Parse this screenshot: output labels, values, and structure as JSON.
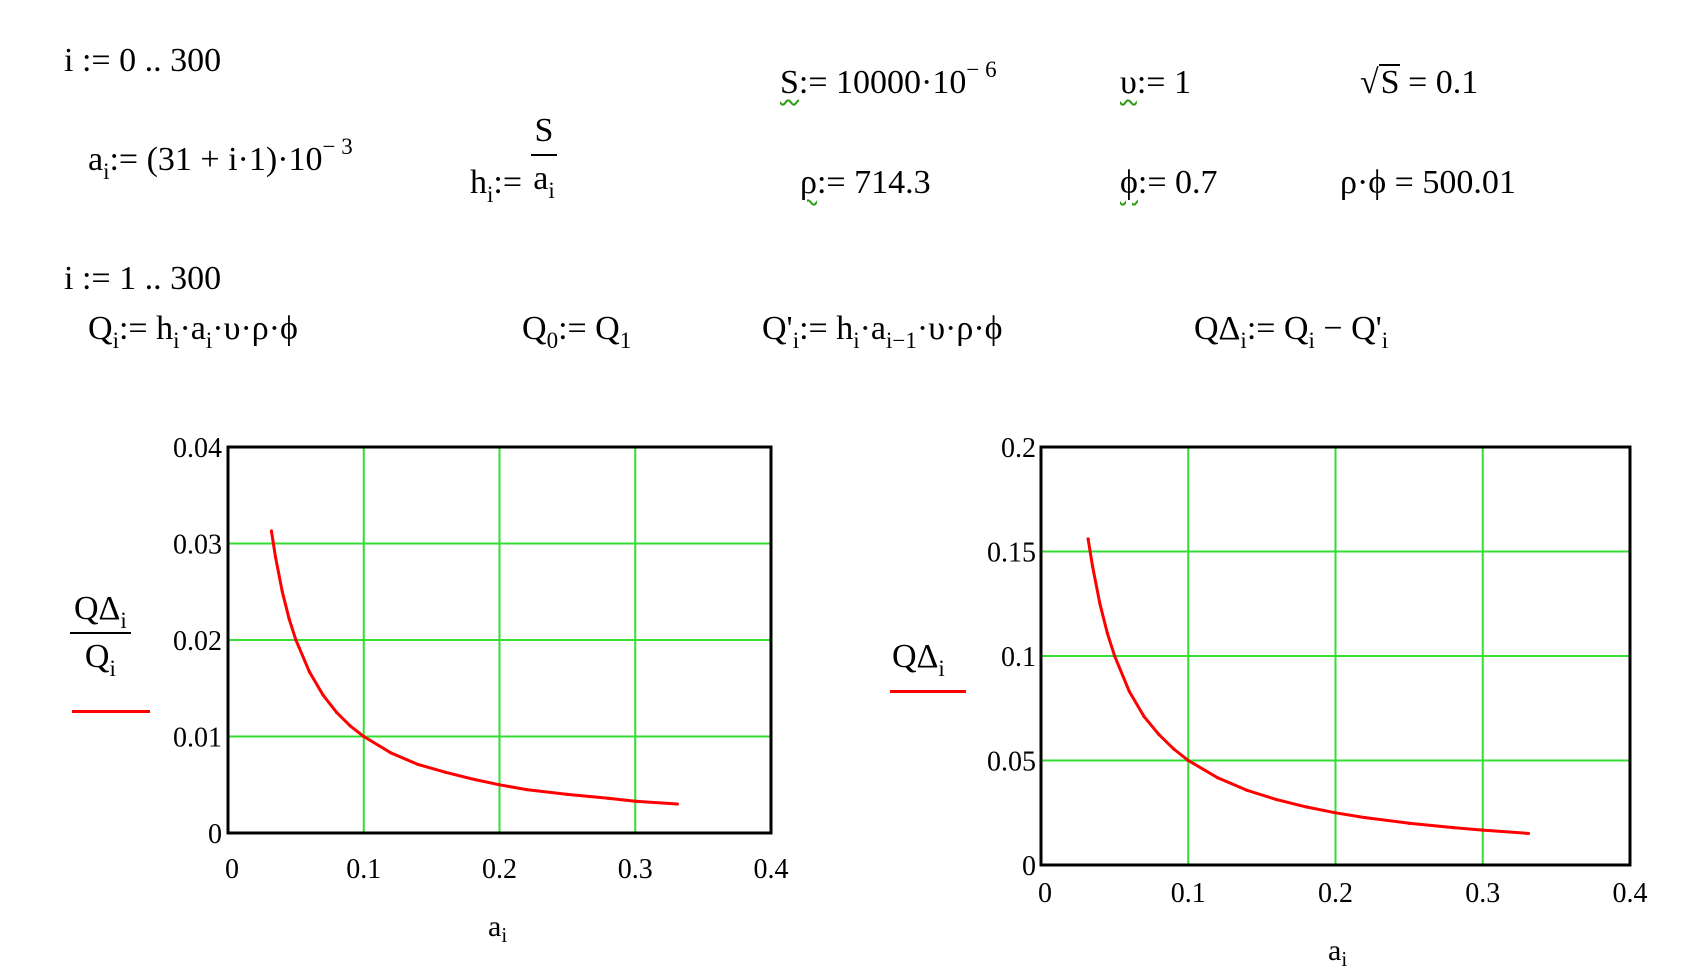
{
  "equations": {
    "range1": "i := 0 .. 300",
    "a_def": "a",
    "a_sub": "i",
    "a_rhs": ":= (31 + i·1)·10",
    "a_exp": "− 3",
    "h_lhs": "h",
    "h_sub": "i",
    "h_assign": ":=",
    "h_num": "S",
    "h_den": "a",
    "h_den_sub": "i",
    "S_lhs": "S",
    "S_rhs": ":= 10000·10",
    "S_exp": "− 6",
    "v_lhs": "υ",
    "v_rhs": ":= 1",
    "sqrt_sym": "√",
    "sqrt_arg": "S",
    "sqrt_rhs": " = 0.1",
    "rho_lhs": "ρ",
    "rho_rhs": ":= 714.3",
    "phi_lhs": "ϕ",
    "phi_rhs": ":= 0.7",
    "rhophi": "ρ·ϕ = 500.01",
    "range2": "i := 1 .. 300",
    "Q_lhs": "Q",
    "Q_sub": "i",
    "Q_rhs1": ":= h",
    "Q_rhs1_sub": "i",
    "Q_rhs2": "·a",
    "Q_rhs2_sub": "i",
    "Q_rhs3": "·υ·ρ·ϕ",
    "Q0_lhs": "Q",
    "Q0_sub": "0",
    "Q0_rhs": ":= Q",
    "Q0_rhs_sub": "1",
    "Qp_lhs": "Q'",
    "Qp_sub": "i",
    "Qp_rhs1": ":= h",
    "Qp_rhs1_sub": "i",
    "Qp_rhs2": "·a",
    "Qp_rhs2_sub": "i−1",
    "Qp_rhs3": "·υ·ρ·ϕ",
    "Qd_lhs": "QΔ",
    "Qd_sub": "i",
    "Qd_rhs1": ":= Q",
    "Qd_rhs1_sub": "i",
    "Qd_rhs2": " − Q'",
    "Qd_rhs2_sub": "i"
  },
  "chart_data": [
    {
      "type": "line",
      "xlabel": "a",
      "xlabel_sub": "i",
      "ylabel_num": "QΔ",
      "ylabel_num_sub": "i",
      "ylabel_den": "Q",
      "ylabel_den_sub": "i",
      "xlim": [
        0,
        0.4
      ],
      "ylim": [
        0,
        0.04
      ],
      "xticks": [
        "0",
        "0.1",
        "0.2",
        "0.3",
        "0.4"
      ],
      "yticks": [
        "0",
        "0.01",
        "0.02",
        "0.03",
        "0.04"
      ],
      "grid": true,
      "series_color": "#ff0000",
      "grid_color": "#33dd33",
      "x": [
        0.032,
        0.035,
        0.04,
        0.045,
        0.05,
        0.06,
        0.07,
        0.08,
        0.09,
        0.1,
        0.12,
        0.14,
        0.16,
        0.18,
        0.2,
        0.22,
        0.25,
        0.28,
        0.3,
        0.331
      ],
      "y": [
        0.0313,
        0.0286,
        0.025,
        0.0222,
        0.02,
        0.0167,
        0.0143,
        0.0125,
        0.0111,
        0.01,
        0.0083,
        0.0071,
        0.0063,
        0.0056,
        0.005,
        0.0045,
        0.004,
        0.0036,
        0.0033,
        0.003
      ]
    },
    {
      "type": "line",
      "xlabel": "a",
      "xlabel_sub": "i",
      "ylabel": "QΔ",
      "ylabel_sub": "i",
      "xlim": [
        0,
        0.4
      ],
      "ylim": [
        0,
        0.2
      ],
      "xticks": [
        "0",
        "0.1",
        "0.2",
        "0.3",
        "0.4"
      ],
      "yticks": [
        "0",
        "0.05",
        "0.1",
        "0.15",
        "0.2"
      ],
      "grid": true,
      "series_color": "#ff0000",
      "grid_color": "#33dd33",
      "x": [
        0.032,
        0.035,
        0.04,
        0.045,
        0.05,
        0.06,
        0.07,
        0.08,
        0.09,
        0.1,
        0.12,
        0.14,
        0.16,
        0.18,
        0.2,
        0.22,
        0.25,
        0.28,
        0.3,
        0.331
      ],
      "y": [
        0.156,
        0.143,
        0.125,
        0.111,
        0.1,
        0.083,
        0.071,
        0.0625,
        0.0556,
        0.05,
        0.0417,
        0.0357,
        0.0313,
        0.0278,
        0.025,
        0.0227,
        0.02,
        0.0179,
        0.0167,
        0.0151
      ]
    }
  ]
}
